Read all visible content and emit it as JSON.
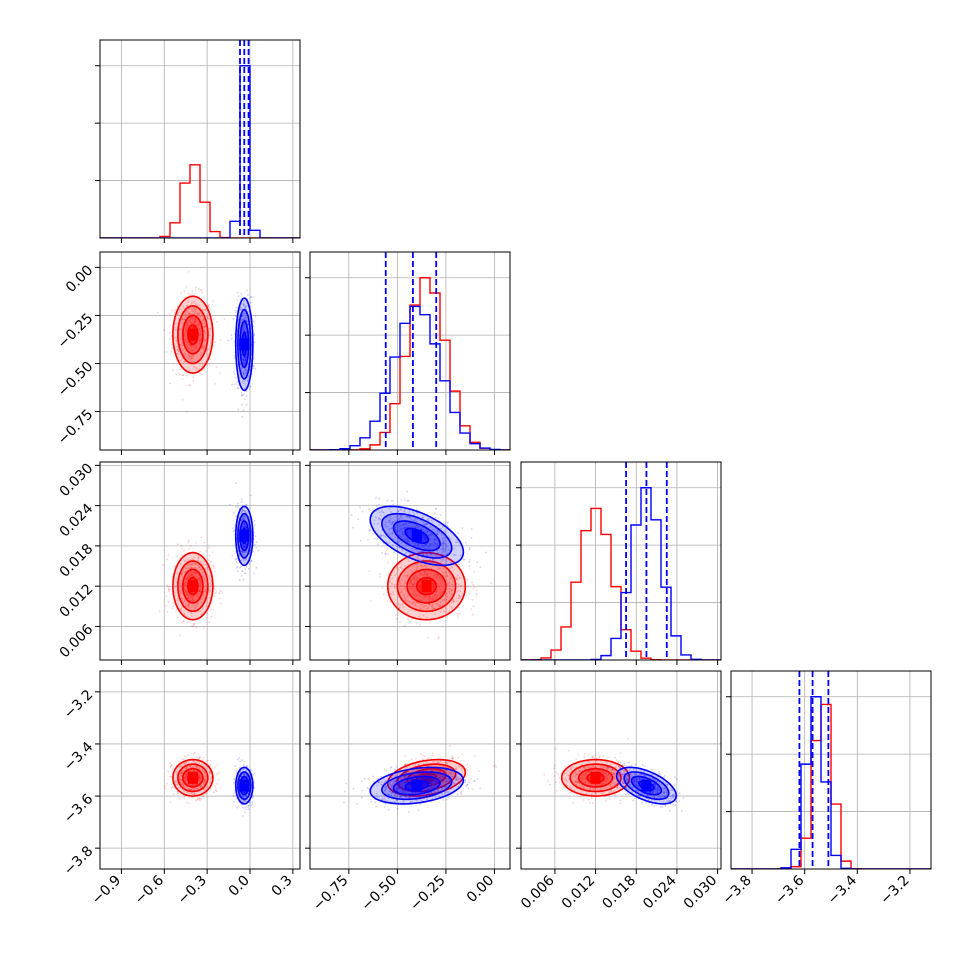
{
  "chart_data": {
    "type": "corner",
    "parameters": 4,
    "grid": true,
    "series": [
      {
        "color": "#ff0000",
        "means": [
          -0.4,
          -0.35,
          0.012,
          -3.53
        ],
        "stds": [
          0.07,
          0.1,
          0.0025,
          0.035
        ],
        "corr": [
          [
            1,
            0,
            0,
            0
          ],
          [
            0,
            1,
            0,
            0.3
          ],
          [
            0,
            0,
            1,
            0
          ],
          [
            0,
            0.3,
            0,
            1
          ]
        ]
      },
      {
        "color": "#0000ff",
        "means": [
          -0.04,
          -0.4,
          0.0195,
          -3.56
        ],
        "stds": [
          0.03,
          0.12,
          0.0022,
          0.035
        ],
        "corr": [
          [
            1,
            0,
            0,
            0
          ],
          [
            0,
            1,
            -0.55,
            0.3
          ],
          [
            0,
            -0.55,
            1,
            -0.55
          ],
          [
            0,
            0.3,
            -0.55,
            1
          ]
        ]
      }
    ],
    "quantile_lines": {
      "color": "#0000ff",
      "values": [
        [
          -0.07,
          -0.04,
          -0.01
        ],
        [
          -0.56,
          -0.42,
          -0.3
        ],
        [
          0.0165,
          0.0195,
          0.0225
        ],
        [
          -3.62,
          -3.57,
          -3.51
        ]
      ]
    },
    "axes": [
      {
        "range": [
          -1.05,
          0.35
        ],
        "ticks": [
          -0.9,
          -0.6,
          -0.3,
          0.0,
          0.3
        ],
        "tick_labels": [
          "−0.9",
          "−0.6",
          "−0.3",
          "0.0",
          "0.3"
        ]
      },
      {
        "range": [
          -0.95,
          0.08
        ],
        "ticks": [
          -0.75,
          -0.5,
          -0.25,
          0.0
        ],
        "tick_labels": [
          "−0.75",
          "−0.50",
          "−0.25",
          "0.00"
        ]
      },
      {
        "range": [
          0.001,
          0.0305
        ],
        "ticks": [
          0.006,
          0.012,
          0.018,
          0.024,
          0.03
        ],
        "tick_labels": [
          "0.006",
          "0.012",
          "0.018",
          "0.024",
          "0.030"
        ]
      },
      {
        "range": [
          -3.88,
          -3.12
        ],
        "ticks": [
          -3.8,
          -3.6,
          -3.4,
          -3.2
        ],
        "tick_labels": [
          "−3.8",
          "−3.6",
          "−3.4",
          "−3.2"
        ]
      }
    ],
    "y_tick_labels": {
      "row1": [
        "0.00",
        "−0.25",
        "−0.50",
        "−0.75"
      ],
      "row2": [
        "0.030",
        "0.024",
        "0.018",
        "0.012",
        "0.006"
      ],
      "row3": [
        "−3.2",
        "−3.4",
        "−3.6",
        "−3.8"
      ]
    }
  }
}
